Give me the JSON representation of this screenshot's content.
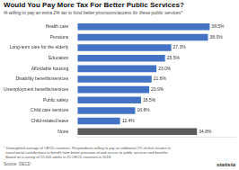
{
  "chart_data": {
    "type": "bar",
    "orientation": "horizontal",
    "title": "Would You Pay More Tax For Better Public Services?",
    "subtitle": "% willing to pay an extra 2% tax to fund better provisions/access for these public services*",
    "categories": [
      "Health care",
      "Pensions",
      "Long-term care for the elderly",
      "Education",
      "Affordable housing",
      "Disability benefits/services",
      "Unemployment benefits/services",
      "Public safety",
      "Child care services",
      "Child-related leave",
      "None"
    ],
    "values": [
      38.5,
      38.0,
      27.3,
      25.5,
      23.0,
      21.6,
      20.9,
      18.5,
      16.8,
      12.4,
      34.8
    ],
    "value_labels": [
      "38.5%",
      "38.0%",
      "27.3%",
      "25.5%",
      "23.0%",
      "21.6%",
      "20.9%",
      "18.5%",
      "16.8%",
      "12.4%",
      "34.8%"
    ],
    "colors": [
      "#4472c4",
      "#4472c4",
      "#4472c4",
      "#4472c4",
      "#4472c4",
      "#4472c4",
      "#4472c4",
      "#4472c4",
      "#4472c4",
      "#4472c4",
      "#5a5a5a"
    ],
    "xlim": [
      0,
      46
    ],
    "xticks": [],
    "data_labels": true,
    "tick_labels": "y",
    "grid": false,
    "annotations": [
      "* Unweighted average of OECD countries. Respondents willing to pay an additional 2% of their income in\n  taxes/social contributions to benefit from better provision of and access to public services and benefits.\n  Based on a survey of 22,000 adults in 25 OECD countries in 2018.",
      "Source: OECD",
      "statista"
    ]
  }
}
